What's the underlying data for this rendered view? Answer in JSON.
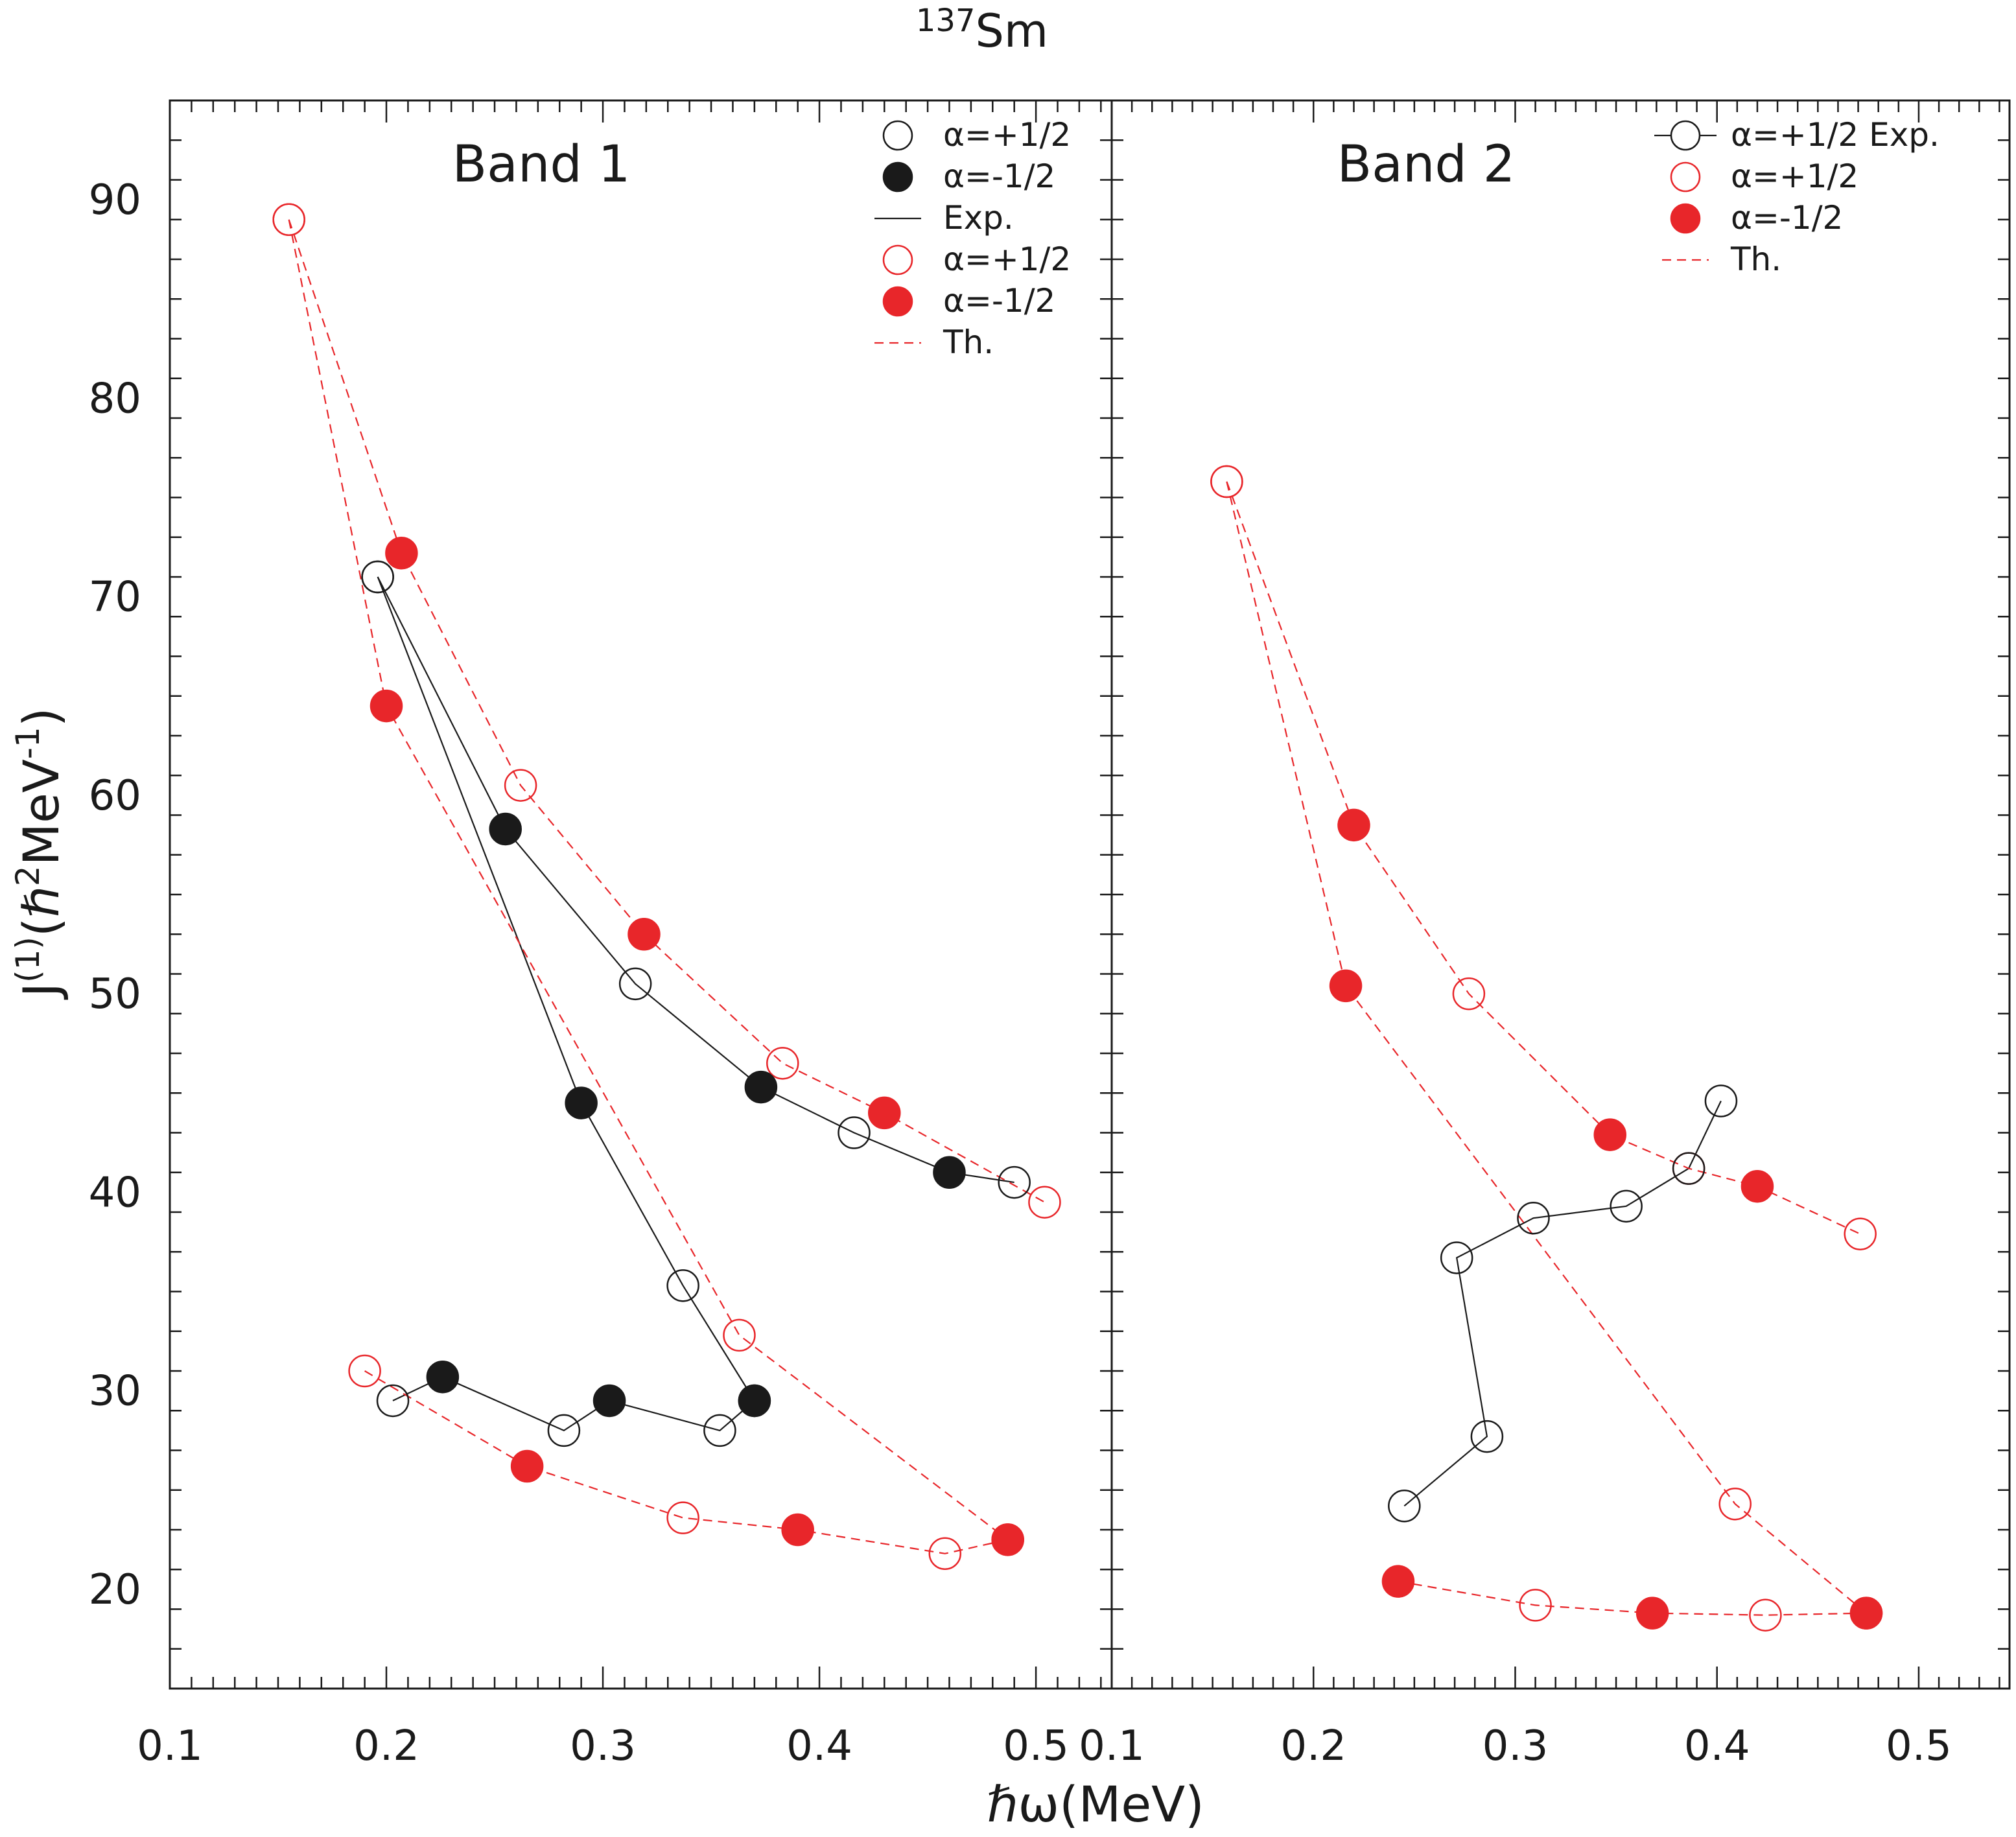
{
  "title_prefix": "137",
  "title_suffix": "Sm",
  "xlabel": "ℏω(MeV)",
  "ylabel_parts": [
    "J",
    "(1)",
    "(ℏ",
    "2",
    "MeV",
    "-1",
    ")"
  ],
  "colors": {
    "exp": "#1a1a1a",
    "theory": "#e8262a"
  },
  "chart_data": [
    {
      "type": "scatter",
      "panel": "left",
      "title": "Band 1",
      "xlim": [
        0.1,
        0.535
      ],
      "ylim": [
        15,
        95
      ],
      "xticks": [
        0.1,
        0.2,
        0.3,
        0.4,
        0.5
      ],
      "xtick_labels": [
        "0.1",
        "0.2",
        "0.3",
        "0.4",
        "0.5"
      ],
      "yticks": [
        20,
        30,
        40,
        50,
        60,
        70,
        80,
        90
      ],
      "ytick_labels": [
        "20",
        "30",
        "40",
        "50",
        "60",
        "70",
        "80",
        "90"
      ],
      "legend": [
        {
          "label": "α=+1/2",
          "kind": "open",
          "color": "#1a1a1a"
        },
        {
          "label": "α=-1/2",
          "kind": "filled",
          "color": "#1a1a1a"
        },
        {
          "label": "Exp.",
          "kind": "solid-line",
          "color": "#1a1a1a"
        },
        {
          "label": "α=+1/2",
          "kind": "open",
          "color": "#e8262a"
        },
        {
          "label": "α=-1/2",
          "kind": "filled",
          "color": "#e8262a"
        },
        {
          "label": "Th.",
          "kind": "dashed-line",
          "color": "#e8262a"
        }
      ],
      "series": [
        {
          "name": "Exp. upper branch",
          "group": "exp",
          "points": [
            {
              "x": 0.196,
              "y": 71.0,
              "m": "open"
            },
            {
              "x": 0.255,
              "y": 58.3,
              "m": "filled"
            },
            {
              "x": 0.315,
              "y": 50.5,
              "m": "open"
            },
            {
              "x": 0.373,
              "y": 45.3,
              "m": "filled"
            },
            {
              "x": 0.416,
              "y": 43.0,
              "m": "open"
            },
            {
              "x": 0.46,
              "y": 41.0,
              "m": "filled"
            },
            {
              "x": 0.49,
              "y": 40.5,
              "m": "open"
            }
          ]
        },
        {
          "name": "Exp. lower branch",
          "group": "exp",
          "points": [
            {
              "x": 0.196,
              "y": 71.0,
              "m": "open"
            },
            {
              "x": 0.29,
              "y": 44.5,
              "m": "filled"
            },
            {
              "x": 0.337,
              "y": 35.3,
              "m": "open"
            },
            {
              "x": 0.37,
              "y": 29.5,
              "m": "filled"
            }
          ]
        },
        {
          "name": "Exp. low band",
          "group": "exp",
          "points": [
            {
              "x": 0.203,
              "y": 29.5,
              "m": "open"
            },
            {
              "x": 0.226,
              "y": 30.7,
              "m": "filled"
            },
            {
              "x": 0.282,
              "y": 28.0,
              "m": "open"
            },
            {
              "x": 0.303,
              "y": 29.5,
              "m": "filled"
            },
            {
              "x": 0.354,
              "y": 28.0,
              "m": "open"
            },
            {
              "x": 0.37,
              "y": 29.5,
              "m": "filled"
            }
          ]
        },
        {
          "name": "Th. upper branch",
          "group": "th",
          "points": [
            {
              "x": 0.155,
              "y": 89.0,
              "m": "open"
            },
            {
              "x": 0.207,
              "y": 72.2,
              "m": "filled"
            },
            {
              "x": 0.262,
              "y": 60.5,
              "m": "open"
            },
            {
              "x": 0.319,
              "y": 53.0,
              "m": "filled"
            },
            {
              "x": 0.383,
              "y": 46.5,
              "m": "open"
            },
            {
              "x": 0.43,
              "y": 44.0,
              "m": "filled"
            },
            {
              "x": 0.504,
              "y": 39.5,
              "m": "open"
            }
          ]
        },
        {
          "name": "Th. lower branch",
          "group": "th",
          "points": [
            {
              "x": 0.155,
              "y": 89.0,
              "m": "open"
            },
            {
              "x": 0.2,
              "y": 64.5,
              "m": "filled"
            },
            {
              "x": 0.363,
              "y": 32.8,
              "m": "open"
            },
            {
              "x": 0.487,
              "y": 22.5,
              "m": "filled"
            }
          ]
        },
        {
          "name": "Th. low band",
          "group": "th",
          "points": [
            {
              "x": 0.19,
              "y": 31.0,
              "m": "open"
            },
            {
              "x": 0.265,
              "y": 26.2,
              "m": "filled"
            },
            {
              "x": 0.337,
              "y": 23.6,
              "m": "open"
            },
            {
              "x": 0.39,
              "y": 23.0,
              "m": "filled"
            },
            {
              "x": 0.458,
              "y": 21.8,
              "m": "open"
            },
            {
              "x": 0.487,
              "y": 22.5,
              "m": "filled"
            }
          ]
        }
      ]
    },
    {
      "type": "scatter",
      "panel": "right",
      "title": "Band 2",
      "xlim": [
        0.1,
        0.545
      ],
      "ylim": [
        15,
        95
      ],
      "xticks": [
        0.1,
        0.2,
        0.3,
        0.4,
        0.5
      ],
      "xtick_labels": [
        "0.1",
        "0.2",
        "0.3",
        "0.4",
        "0.5"
      ],
      "yticks": [
        20,
        30,
        40,
        50,
        60,
        70,
        80,
        90
      ],
      "ytick_labels": [],
      "legend": [
        {
          "label": "α=+1/2 Exp.",
          "kind": "open-line",
          "color": "#1a1a1a"
        },
        {
          "label": "α=+1/2",
          "kind": "open",
          "color": "#e8262a"
        },
        {
          "label": "α=-1/2",
          "kind": "filled",
          "color": "#e8262a"
        },
        {
          "label": "Th.",
          "kind": "dashed-line",
          "color": "#e8262a"
        }
      ],
      "series": [
        {
          "name": "Exp.",
          "group": "exp",
          "points": [
            {
              "x": 0.245,
              "y": 24.2,
              "m": "open"
            },
            {
              "x": 0.286,
              "y": 27.7,
              "m": "open"
            },
            {
              "x": 0.271,
              "y": 36.7,
              "m": "open"
            },
            {
              "x": 0.309,
              "y": 38.7,
              "m": "open"
            },
            {
              "x": 0.355,
              "y": 39.3,
              "m": "open"
            },
            {
              "x": 0.386,
              "y": 41.2,
              "m": "open"
            },
            {
              "x": 0.402,
              "y": 44.6,
              "m": "open"
            }
          ]
        },
        {
          "name": "Th. upper branch",
          "group": "th",
          "points": [
            {
              "x": 0.157,
              "y": 75.8,
              "m": "open"
            },
            {
              "x": 0.22,
              "y": 58.5,
              "m": "filled"
            },
            {
              "x": 0.277,
              "y": 50.0,
              "m": "open"
            },
            {
              "x": 0.347,
              "y": 42.9,
              "m": "filled"
            },
            {
              "x": 0.386,
              "y": 41.2,
              "m": "open"
            },
            {
              "x": 0.42,
              "y": 40.3,
              "m": "filled"
            },
            {
              "x": 0.471,
              "y": 37.9,
              "m": "open"
            }
          ]
        },
        {
          "name": "Th. lower branch",
          "group": "th",
          "points": [
            {
              "x": 0.157,
              "y": 75.8,
              "m": "open"
            },
            {
              "x": 0.216,
              "y": 50.4,
              "m": "filled"
            },
            {
              "x": 0.409,
              "y": 24.3,
              "m": "open"
            },
            {
              "x": 0.474,
              "y": 18.8,
              "m": "filled"
            }
          ]
        },
        {
          "name": "Th. low band",
          "group": "th",
          "points": [
            {
              "x": 0.242,
              "y": 20.4,
              "m": "filled"
            },
            {
              "x": 0.31,
              "y": 19.2,
              "m": "open"
            },
            {
              "x": 0.368,
              "y": 18.8,
              "m": "filled"
            },
            {
              "x": 0.424,
              "y": 18.7,
              "m": "open"
            },
            {
              "x": 0.474,
              "y": 18.8,
              "m": "filled"
            }
          ]
        }
      ]
    }
  ]
}
